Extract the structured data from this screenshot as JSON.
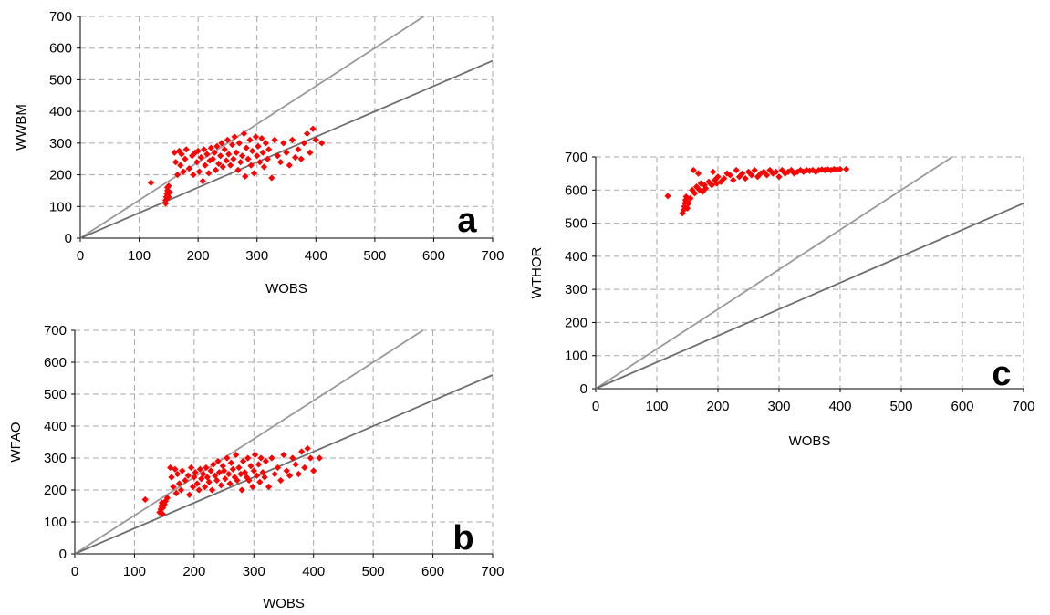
{
  "chart_data": [
    {
      "type": "scatter",
      "panel_label": "a",
      "xlabel": "WOBS",
      "ylabel": "WWBM",
      "xlim": [
        0,
        700
      ],
      "ylim": [
        0,
        700
      ],
      "xticks": [
        "0",
        "100",
        "200",
        "300",
        "400",
        "500",
        "600",
        "700"
      ],
      "yticks": [
        "0",
        "100",
        "200",
        "300",
        "400",
        "500",
        "600",
        "700"
      ],
      "grid": true,
      "point_color": "#ff0000",
      "reference_lines": [
        {
          "name": "",
          "slope": 1.2,
          "color": "#999999"
        },
        {
          "name": "",
          "slope": 0.8,
          "color": "#6e6e6e"
        }
      ],
      "series": [
        {
          "x": [
            120,
            145,
            145,
            146,
            147,
            148,
            148,
            150,
            150,
            152,
            160,
            162,
            165,
            168,
            170,
            172,
            175,
            178,
            180,
            185,
            190,
            192,
            195,
            198,
            200,
            202,
            205,
            208,
            210,
            212,
            215,
            218,
            220,
            222,
            225,
            228,
            230,
            232,
            235,
            238,
            240,
            242,
            245,
            248,
            250,
            252,
            255,
            258,
            260,
            262,
            265,
            268,
            270,
            272,
            275,
            278,
            280,
            282,
            285,
            288,
            290,
            292,
            295,
            298,
            300,
            302,
            305,
            308,
            310,
            312,
            315,
            318,
            320,
            325,
            330,
            335,
            340,
            345,
            350,
            355,
            360,
            365,
            370,
            375,
            380,
            385,
            390,
            395,
            400,
            410
          ],
          "y": [
            175,
            110,
            120,
            130,
            140,
            150,
            160,
            165,
            130,
            145,
            270,
            240,
            200,
            275,
            230,
            265,
            210,
            250,
            280,
            220,
            260,
            200,
            270,
            240,
            275,
            210,
            255,
            180,
            280,
            230,
            265,
            205,
            245,
            285,
            250,
            270,
            215,
            290,
            235,
            260,
            300,
            225,
            280,
            245,
            310,
            265,
            230,
            295,
            250,
            320,
            270,
            215,
            300,
            240,
            260,
            330,
            195,
            285,
            250,
            310,
            230,
            275,
            205,
            320,
            260,
            290,
            240,
            315,
            270,
            225,
            300,
            250,
            280,
            190,
            310,
            260,
            240,
            300,
            270,
            230,
            310,
            255,
            280,
            250,
            300,
            330,
            270,
            345,
            310,
            300
          ]
        }
      ]
    },
    {
      "type": "scatter",
      "panel_label": "b",
      "xlabel": "WOBS",
      "ylabel": "WFAO",
      "xlim": [
        0,
        700
      ],
      "ylim": [
        0,
        700
      ],
      "xticks": [
        "0",
        "100",
        "200",
        "300",
        "400",
        "500",
        "600",
        "700"
      ],
      "yticks": [
        "0",
        "100",
        "200",
        "300",
        "400",
        "500",
        "600",
        "700"
      ],
      "grid": true,
      "point_color": "#ff0000",
      "reference_lines": [
        {
          "name": "",
          "slope": 1.2,
          "color": "#999999"
        },
        {
          "name": "",
          "slope": 0.8,
          "color": "#6e6e6e"
        }
      ],
      "series": [
        {
          "x": [
            118,
            142,
            144,
            145,
            146,
            147,
            148,
            150,
            152,
            155,
            160,
            162,
            165,
            168,
            170,
            172,
            175,
            178,
            180,
            185,
            190,
            192,
            195,
            198,
            200,
            202,
            205,
            208,
            210,
            212,
            215,
            218,
            220,
            222,
            225,
            228,
            230,
            232,
            235,
            238,
            240,
            242,
            245,
            248,
            250,
            252,
            255,
            258,
            260,
            262,
            265,
            268,
            270,
            272,
            275,
            278,
            280,
            282,
            285,
            288,
            290,
            292,
            295,
            298,
            300,
            302,
            305,
            308,
            310,
            312,
            315,
            318,
            320,
            325,
            330,
            335,
            340,
            345,
            350,
            355,
            360,
            365,
            370,
            375,
            380,
            385,
            390,
            395,
            400,
            410
          ],
          "y": [
            170,
            130,
            140,
            150,
            160,
            125,
            145,
            155,
            165,
            175,
            270,
            240,
            210,
            265,
            190,
            250,
            220,
            200,
            260,
            230,
            245,
            185,
            270,
            210,
            240,
            255,
            220,
            200,
            265,
            235,
            250,
            210,
            270,
            240,
            225,
            260,
            200,
            280,
            245,
            230,
            290,
            255,
            215,
            275,
            260,
            235,
            300,
            250,
            220,
            285,
            265,
            240,
            310,
            230,
            270,
            250,
            200,
            290,
            255,
            240,
            300,
            230,
            275,
            210,
            260,
            310,
            245,
            280,
            225,
            300,
            255,
            240,
            290,
            210,
            300,
            250,
            270,
            230,
            310,
            260,
            245,
            300,
            280,
            250,
            320,
            270,
            330,
            300,
            260,
            300
          ]
        }
      ]
    },
    {
      "type": "scatter",
      "panel_label": "c",
      "xlabel": "WOBS",
      "ylabel": "WTHOR",
      "xlim": [
        0,
        700
      ],
      "ylim": [
        0,
        700
      ],
      "xticks": [
        "0",
        "100",
        "200",
        "300",
        "400",
        "500",
        "600",
        "700"
      ],
      "yticks": [
        "0",
        "100",
        "200",
        "300",
        "400",
        "500",
        "600",
        "700"
      ],
      "grid": true,
      "point_color": "#ff0000",
      "reference_lines": [
        {
          "name": "",
          "slope": 1.2,
          "color": "#999999"
        },
        {
          "name": "",
          "slope": 0.8,
          "color": "#6e6e6e"
        }
      ],
      "series": [
        {
          "x": [
            118,
            142,
            144,
            145,
            146,
            147,
            148,
            150,
            152,
            155,
            158,
            160,
            162,
            165,
            168,
            170,
            172,
            175,
            178,
            180,
            185,
            190,
            192,
            195,
            198,
            200,
            205,
            210,
            215,
            220,
            225,
            230,
            235,
            240,
            245,
            250,
            255,
            260,
            265,
            270,
            275,
            280,
            285,
            290,
            295,
            300,
            305,
            310,
            315,
            320,
            325,
            330,
            335,
            340,
            345,
            350,
            355,
            360,
            365,
            370,
            375,
            380,
            385,
            390,
            395,
            400,
            410
          ],
          "y": [
            582,
            530,
            540,
            550,
            560,
            570,
            580,
            545,
            560,
            575,
            600,
            660,
            590,
            610,
            650,
            600,
            620,
            595,
            615,
            605,
            625,
            615,
            655,
            630,
            620,
            640,
            625,
            635,
            650,
            645,
            630,
            660,
            640,
            650,
            635,
            655,
            645,
            660,
            640,
            650,
            655,
            645,
            660,
            650,
            655,
            640,
            660,
            650,
            655,
            660,
            650,
            655,
            660,
            655,
            660,
            658,
            660,
            655,
            660,
            662,
            660,
            662,
            660,
            663,
            662,
            663,
            663
          ]
        }
      ]
    }
  ]
}
